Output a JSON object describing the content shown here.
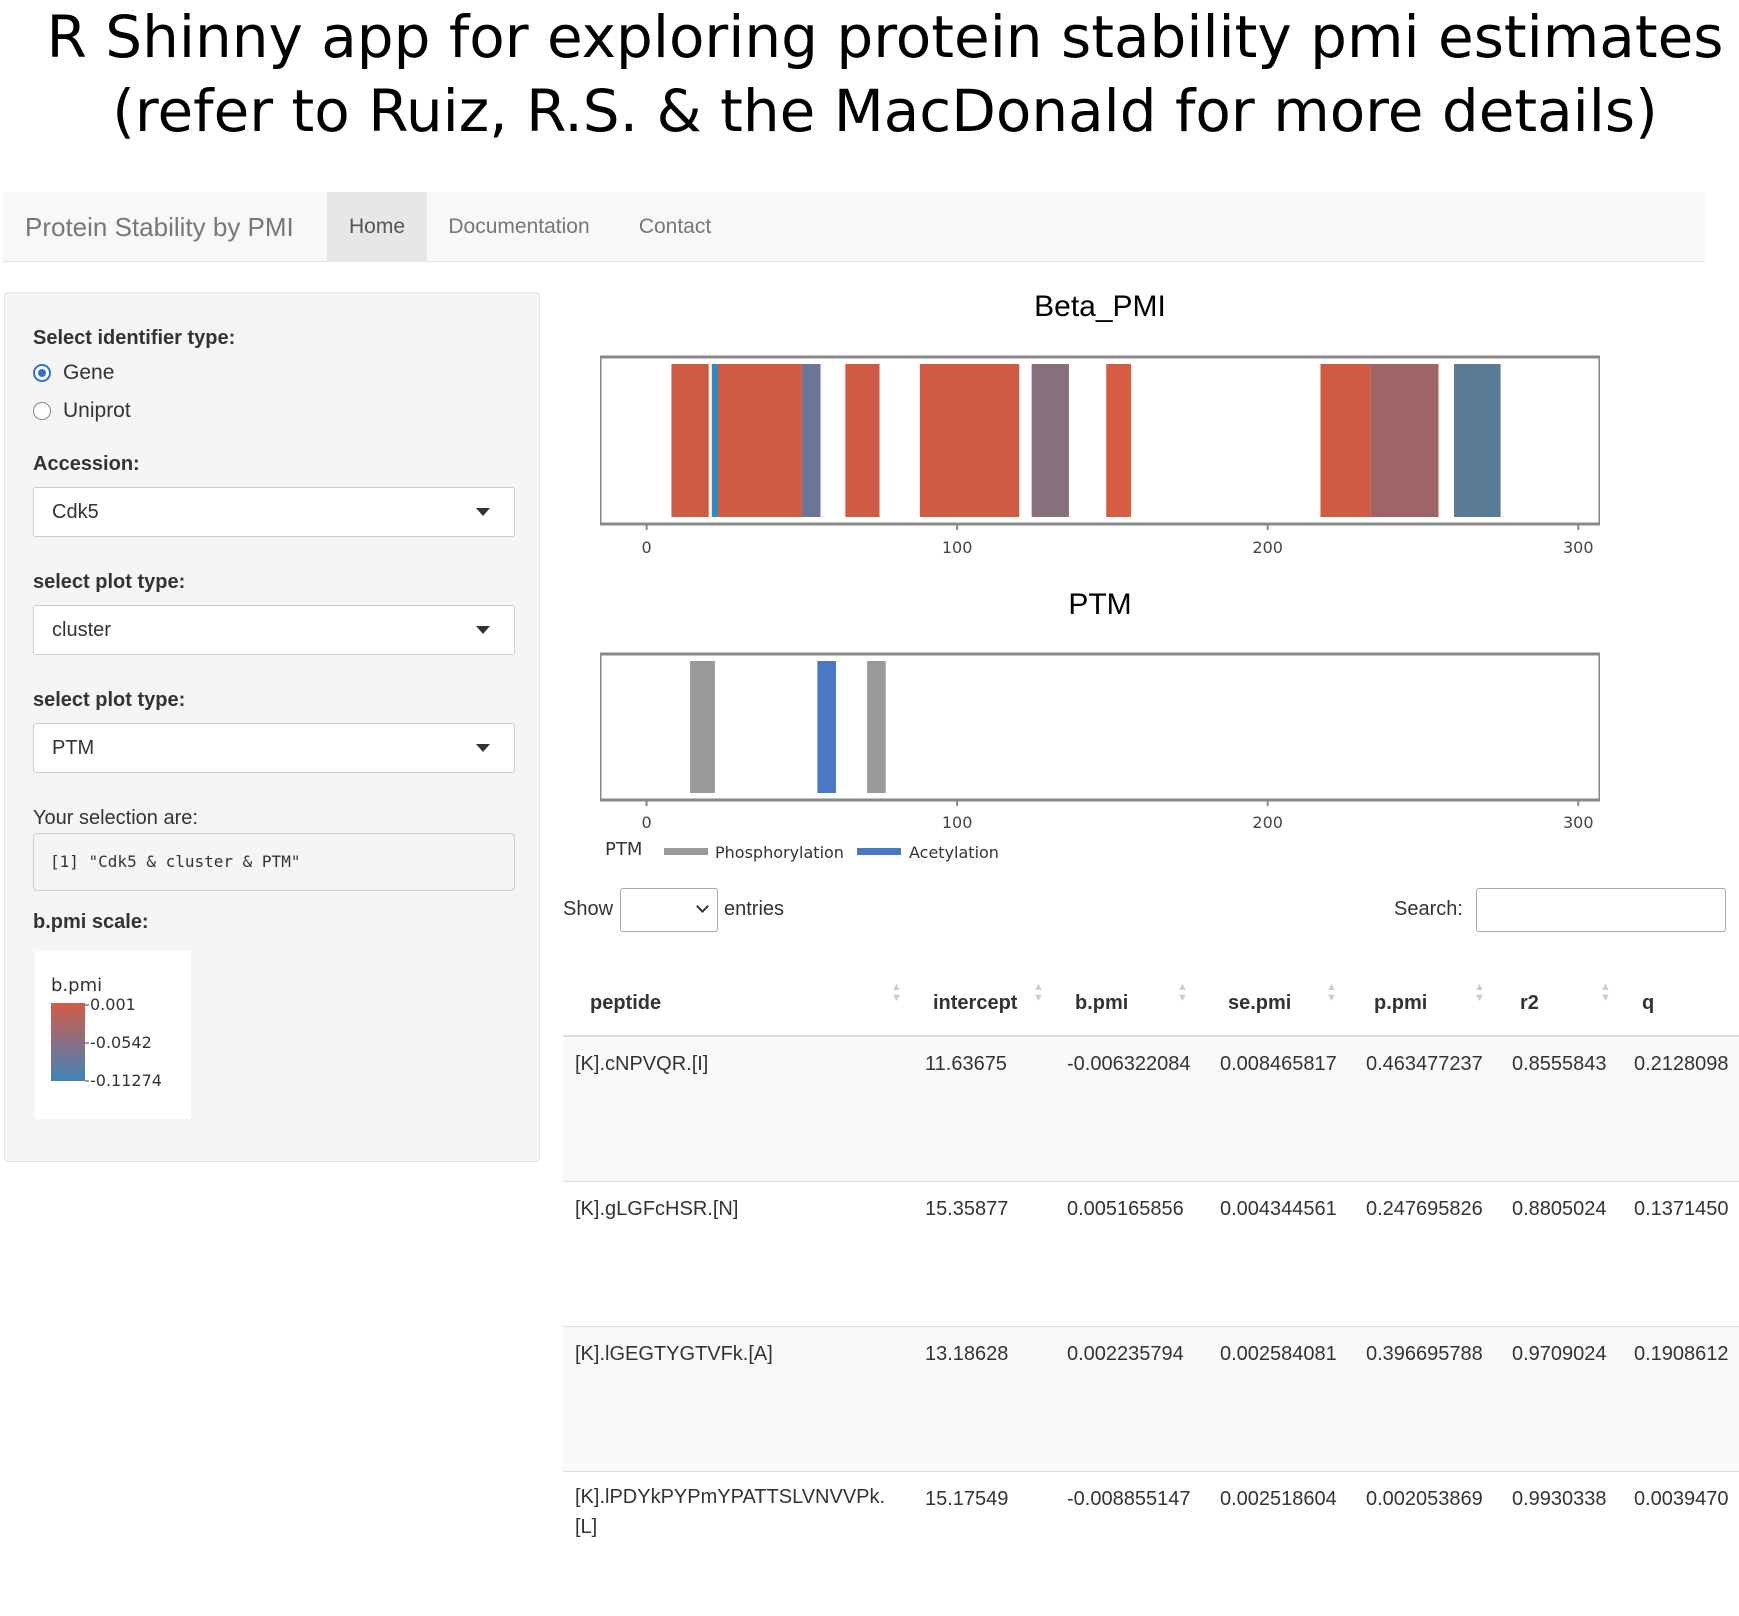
{
  "caption": {
    "line1": "R Shinny app for exploring protein stability pmi estimates",
    "line2": "(refer to Ruiz, R.S. & the MacDonald for more details)"
  },
  "navbar": {
    "brand": "Protein Stability by PMI",
    "tabs": [
      {
        "label": "Home",
        "active": true
      },
      {
        "label": "Documentation",
        "active": false
      },
      {
        "label": "Contact",
        "active": false
      }
    ]
  },
  "sidebar": {
    "identifier_label": "Select identifier type:",
    "radio_options": [
      {
        "label": "Gene",
        "checked": true
      },
      {
        "label": "Uniprot",
        "checked": false
      }
    ],
    "accession_label": "Accession:",
    "accession_value": "Cdk5",
    "plot_type_label_1": "select plot type:",
    "plot_type_value_1": "cluster",
    "plot_type_label_2": "select plot type:",
    "plot_type_value_2": "PTM",
    "selection_label": "Your selection are:",
    "selection_value": "[1] \"Cdk5 & cluster & PTM\"",
    "scale_label": "b.pmi scale:",
    "scale_legend": {
      "title": "b.pmi",
      "ticks": [
        "0.001",
        "-0.0542",
        "-0.11274"
      ],
      "colors": {
        "high": "#d45a45",
        "low": "#3f84b8"
      }
    }
  },
  "chart_data": [
    {
      "type": "bar",
      "title": "Beta_PMI",
      "xlim": [
        -15,
        307
      ],
      "xticks": [
        "0",
        "100",
        "200",
        "300"
      ],
      "segments": [
        {
          "start": 8,
          "end": 20,
          "color": "#cf5b45"
        },
        {
          "start": 21,
          "end": 23,
          "color": "#3b86bd"
        },
        {
          "start": 23,
          "end": 50,
          "color": "#cf5b45"
        },
        {
          "start": 50,
          "end": 56,
          "color": "#6b7596"
        },
        {
          "start": 64,
          "end": 75,
          "color": "#cf5b45"
        },
        {
          "start": 88,
          "end": 120,
          "color": "#cf5b45"
        },
        {
          "start": 124,
          "end": 136,
          "color": "#886f7d"
        },
        {
          "start": 148,
          "end": 156,
          "color": "#d65c44"
        },
        {
          "start": 217,
          "end": 233,
          "color": "#cf5b45"
        },
        {
          "start": 233,
          "end": 255,
          "color": "#a06466"
        },
        {
          "start": 260,
          "end": 275,
          "color": "#5a7b96"
        }
      ]
    },
    {
      "type": "bar",
      "title": "PTM",
      "xlim": [
        -15,
        307
      ],
      "xticks": [
        "0",
        "100",
        "200",
        "300"
      ],
      "legend_title": "PTM",
      "series": [
        {
          "name": "Phosphorylation",
          "color": "#999999",
          "ranges": [
            [
              14,
              22
            ],
            [
              71,
              77
            ]
          ]
        },
        {
          "name": "Acetylation",
          "color": "#4a78c4",
          "ranges": [
            [
              55,
              61
            ]
          ]
        }
      ]
    }
  ],
  "datatable": {
    "show_label": "Show",
    "entries_label": "entries",
    "search_label": "Search:",
    "columns": [
      "peptide",
      "intercept",
      "b.pmi",
      "se.pmi",
      "p.pmi",
      "r2",
      "q"
    ],
    "rows": [
      [
        "[K].cNPVQR.[I]",
        "11.63675",
        "-0.006322084",
        "0.008465817",
        "0.463477237",
        "0.8555843",
        "0.2128098"
      ],
      [
        "[K].gLGFcHSR.[N]",
        "15.35877",
        "0.005165856",
        "0.004344561",
        "0.247695826",
        "0.8805024",
        "0.1371450"
      ],
      [
        "[K].lGEGTYGTVFk.[A]",
        "13.18628",
        "0.002235794",
        "0.002584081",
        "0.396695788",
        "0.9709024",
        "0.1908612"
      ],
      [
        "[K].lPDYkPYPmYPATTSLVNVVPk.[L]",
        "15.17549",
        "-0.008855147",
        "0.002518604",
        "0.002053869",
        "0.9930338",
        "0.0039470"
      ]
    ]
  }
}
